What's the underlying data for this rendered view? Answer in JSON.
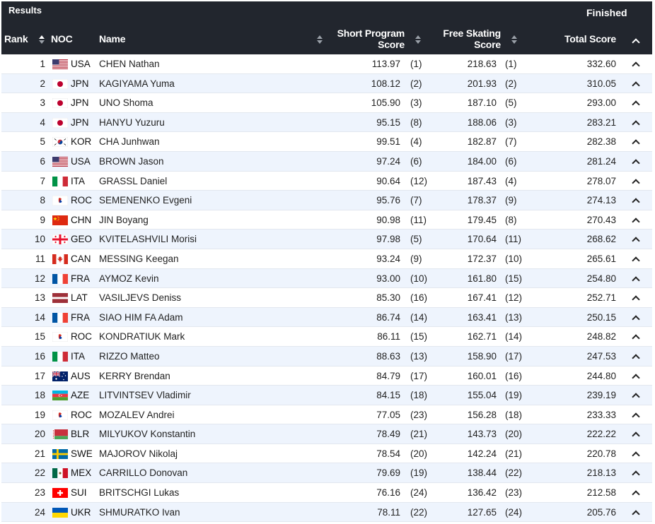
{
  "header": {
    "results_label": "Results",
    "status": "Finished",
    "columns": {
      "rank": "Rank",
      "noc": "NOC",
      "name": "Name",
      "short_program_line1": "Short Program",
      "short_program_line2": "Score",
      "free_skating_line1": "Free Skating",
      "free_skating_line2": "Score",
      "total": "Total Score"
    }
  },
  "flags": {
    "USA": "us-flag-icon",
    "JPN": "japan-flag-icon",
    "KOR": "korea-flag-icon",
    "ITA": "italy-flag-icon",
    "ROC": "roc-emblem-icon",
    "CHN": "china-flag-icon",
    "GEO": "georgia-flag-icon",
    "CAN": "canada-flag-icon",
    "FRA": "france-flag-icon",
    "LAT": "latvia-flag-icon",
    "AUS": "australia-flag-icon",
    "AZE": "azerbaijan-flag-icon",
    "BLR": "belarus-flag-icon",
    "SWE": "sweden-flag-icon",
    "MEX": "mexico-flag-icon",
    "SUI": "switzerland-flag-icon",
    "UKR": "ukraine-flag-icon"
  },
  "rows": [
    {
      "rank": "1",
      "noc": "USA",
      "name": "CHEN Nathan",
      "sp": "113.97",
      "sp_rank": "(1)",
      "fs": "218.63",
      "fs_rank": "(1)",
      "total": "332.60"
    },
    {
      "rank": "2",
      "noc": "JPN",
      "name": "KAGIYAMA Yuma",
      "sp": "108.12",
      "sp_rank": "(2)",
      "fs": "201.93",
      "fs_rank": "(2)",
      "total": "310.05"
    },
    {
      "rank": "3",
      "noc": "JPN",
      "name": "UNO Shoma",
      "sp": "105.90",
      "sp_rank": "(3)",
      "fs": "187.10",
      "fs_rank": "(5)",
      "total": "293.00"
    },
    {
      "rank": "4",
      "noc": "JPN",
      "name": "HANYU Yuzuru",
      "sp": "95.15",
      "sp_rank": "(8)",
      "fs": "188.06",
      "fs_rank": "(3)",
      "total": "283.21"
    },
    {
      "rank": "5",
      "noc": "KOR",
      "name": "CHA Junhwan",
      "sp": "99.51",
      "sp_rank": "(4)",
      "fs": "182.87",
      "fs_rank": "(7)",
      "total": "282.38"
    },
    {
      "rank": "6",
      "noc": "USA",
      "name": "BROWN Jason",
      "sp": "97.24",
      "sp_rank": "(6)",
      "fs": "184.00",
      "fs_rank": "(6)",
      "total": "281.24"
    },
    {
      "rank": "7",
      "noc": "ITA",
      "name": "GRASSL Daniel",
      "sp": "90.64",
      "sp_rank": "(12)",
      "fs": "187.43",
      "fs_rank": "(4)",
      "total": "278.07"
    },
    {
      "rank": "8",
      "noc": "ROC",
      "name": "SEMENENKO Evgeni",
      "sp": "95.76",
      "sp_rank": "(7)",
      "fs": "178.37",
      "fs_rank": "(9)",
      "total": "274.13"
    },
    {
      "rank": "9",
      "noc": "CHN",
      "name": "JIN Boyang",
      "sp": "90.98",
      "sp_rank": "(11)",
      "fs": "179.45",
      "fs_rank": "(8)",
      "total": "270.43"
    },
    {
      "rank": "10",
      "noc": "GEO",
      "name": "KVITELASHVILI Morisi",
      "sp": "97.98",
      "sp_rank": "(5)",
      "fs": "170.64",
      "fs_rank": "(11)",
      "total": "268.62"
    },
    {
      "rank": "11",
      "noc": "CAN",
      "name": "MESSING Keegan",
      "sp": "93.24",
      "sp_rank": "(9)",
      "fs": "172.37",
      "fs_rank": "(10)",
      "total": "265.61"
    },
    {
      "rank": "12",
      "noc": "FRA",
      "name": "AYMOZ Kevin",
      "sp": "93.00",
      "sp_rank": "(10)",
      "fs": "161.80",
      "fs_rank": "(15)",
      "total": "254.80"
    },
    {
      "rank": "13",
      "noc": "LAT",
      "name": "VASILJEVS Deniss",
      "sp": "85.30",
      "sp_rank": "(16)",
      "fs": "167.41",
      "fs_rank": "(12)",
      "total": "252.71"
    },
    {
      "rank": "14",
      "noc": "FRA",
      "name": "SIAO HIM FA Adam",
      "sp": "86.74",
      "sp_rank": "(14)",
      "fs": "163.41",
      "fs_rank": "(13)",
      "total": "250.15"
    },
    {
      "rank": "15",
      "noc": "ROC",
      "name": "KONDRATIUK Mark",
      "sp": "86.11",
      "sp_rank": "(15)",
      "fs": "162.71",
      "fs_rank": "(14)",
      "total": "248.82"
    },
    {
      "rank": "16",
      "noc": "ITA",
      "name": "RIZZO Matteo",
      "sp": "88.63",
      "sp_rank": "(13)",
      "fs": "158.90",
      "fs_rank": "(17)",
      "total": "247.53"
    },
    {
      "rank": "17",
      "noc": "AUS",
      "name": "KERRY Brendan",
      "sp": "84.79",
      "sp_rank": "(17)",
      "fs": "160.01",
      "fs_rank": "(16)",
      "total": "244.80"
    },
    {
      "rank": "18",
      "noc": "AZE",
      "name": "LITVINTSEV Vladimir",
      "sp": "84.15",
      "sp_rank": "(18)",
      "fs": "155.04",
      "fs_rank": "(19)",
      "total": "239.19"
    },
    {
      "rank": "19",
      "noc": "ROC",
      "name": "MOZALEV Andrei",
      "sp": "77.05",
      "sp_rank": "(23)",
      "fs": "156.28",
      "fs_rank": "(18)",
      "total": "233.33"
    },
    {
      "rank": "20",
      "noc": "BLR",
      "name": "MILYUKOV Konstantin",
      "sp": "78.49",
      "sp_rank": "(21)",
      "fs": "143.73",
      "fs_rank": "(20)",
      "total": "222.22"
    },
    {
      "rank": "21",
      "noc": "SWE",
      "name": "MAJOROV Nikolaj",
      "sp": "78.54",
      "sp_rank": "(20)",
      "fs": "142.24",
      "fs_rank": "(21)",
      "total": "220.78"
    },
    {
      "rank": "22",
      "noc": "MEX",
      "name": "CARRILLO Donovan",
      "sp": "79.69",
      "sp_rank": "(19)",
      "fs": "138.44",
      "fs_rank": "(22)",
      "total": "218.13"
    },
    {
      "rank": "23",
      "noc": "SUI",
      "name": "BRITSCHGI Lukas",
      "sp": "76.16",
      "sp_rank": "(24)",
      "fs": "136.42",
      "fs_rank": "(23)",
      "total": "212.58"
    },
    {
      "rank": "24",
      "noc": "UKR",
      "name": "SHMURATKO Ivan",
      "sp": "78.11",
      "sp_rank": "(22)",
      "fs": "127.65",
      "fs_rank": "(24)",
      "total": "205.76"
    }
  ]
}
